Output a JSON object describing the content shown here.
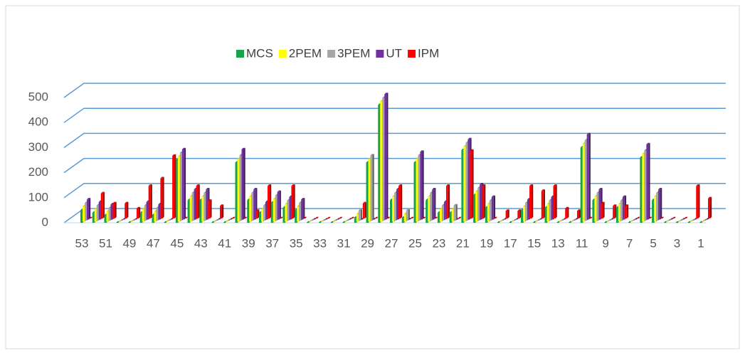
{
  "chart_data": {
    "type": "bar3d",
    "categories": [
      "53",
      null,
      "51",
      null,
      "49",
      null,
      "47",
      null,
      "45",
      null,
      "43",
      null,
      "41",
      null,
      "39",
      null,
      "37",
      null,
      "35",
      null,
      "33",
      null,
      "31",
      null,
      "29",
      null,
      "27",
      null,
      "25",
      null,
      "23",
      null,
      "21",
      null,
      "19",
      null,
      "17",
      null,
      "15",
      null,
      "13",
      null,
      "11",
      null,
      "9",
      null,
      "7",
      null,
      "5",
      null,
      "3",
      null,
      "1"
    ],
    "series": [
      {
        "name": "MCS",
        "color": "#16a34a",
        "values": [
          50,
          40,
          30,
          0,
          0,
          40,
          30,
          0,
          250,
          90,
          90,
          0,
          0,
          240,
          90,
          40,
          80,
          60,
          50,
          0,
          0,
          0,
          0,
          20,
          240,
          470,
          90,
          20,
          240,
          90,
          40,
          40,
          290,
          110,
          60,
          0,
          0,
          50,
          0,
          60,
          0,
          0,
          300,
          90,
          0,
          60,
          0,
          260,
          90,
          0,
          0,
          0,
          0
        ]
      },
      {
        "name": "2PEM",
        "color": "#ffff00",
        "values": [
          60,
          50,
          40,
          0,
          0,
          50,
          40,
          0,
          260,
          100,
          100,
          0,
          0,
          250,
          100,
          50,
          90,
          70,
          60,
          0,
          0,
          0,
          0,
          30,
          250,
          480,
          100,
          30,
          250,
          100,
          50,
          50,
          300,
          120,
          70,
          0,
          0,
          60,
          0,
          70,
          0,
          0,
          310,
          100,
          0,
          70,
          0,
          270,
          100,
          0,
          0,
          0,
          0
        ]
      },
      {
        "name": "3PEM",
        "color": "#a6a6a6",
        "values": [
          70,
          60,
          50,
          0,
          0,
          60,
          50,
          0,
          270,
          110,
          110,
          0,
          0,
          260,
          110,
          60,
          100,
          80,
          70,
          0,
          0,
          0,
          0,
          40,
          260,
          490,
          110,
          40,
          260,
          110,
          60,
          60,
          310,
          130,
          80,
          0,
          0,
          70,
          0,
          80,
          0,
          0,
          320,
          110,
          0,
          80,
          0,
          280,
          110,
          0,
          0,
          0,
          0
        ]
      },
      {
        "name": "UT",
        "color": "#7030a0",
        "values": [
          80,
          70,
          60,
          0,
          0,
          70,
          60,
          0,
          280,
          120,
          120,
          0,
          0,
          280,
          120,
          70,
          110,
          90,
          80,
          0,
          0,
          0,
          0,
          0,
          0,
          500,
          120,
          0,
          270,
          120,
          70,
          0,
          320,
          140,
          90,
          0,
          0,
          80,
          0,
          90,
          0,
          0,
          340,
          120,
          0,
          90,
          0,
          300,
          120,
          0,
          0,
          0,
          0
        ]
      },
      {
        "name": "IPM",
        "color": "#ff0000",
        "values": [
          0,
          100,
          60,
          60,
          40,
          130,
          160,
          250,
          0,
          130,
          70,
          50,
          0,
          0,
          30,
          130,
          0,
          130,
          0,
          0,
          0,
          0,
          0,
          60,
          0,
          0,
          130,
          0,
          0,
          0,
          130,
          0,
          270,
          130,
          0,
          30,
          30,
          130,
          110,
          130,
          40,
          30,
          0,
          60,
          50,
          50,
          0,
          0,
          0,
          0,
          0,
          130,
          80
        ]
      }
    ],
    "ylim": [
      0,
      500
    ],
    "yticks": [
      0,
      100,
      200,
      300,
      400,
      500
    ],
    "grid": true,
    "legend": "top"
  }
}
